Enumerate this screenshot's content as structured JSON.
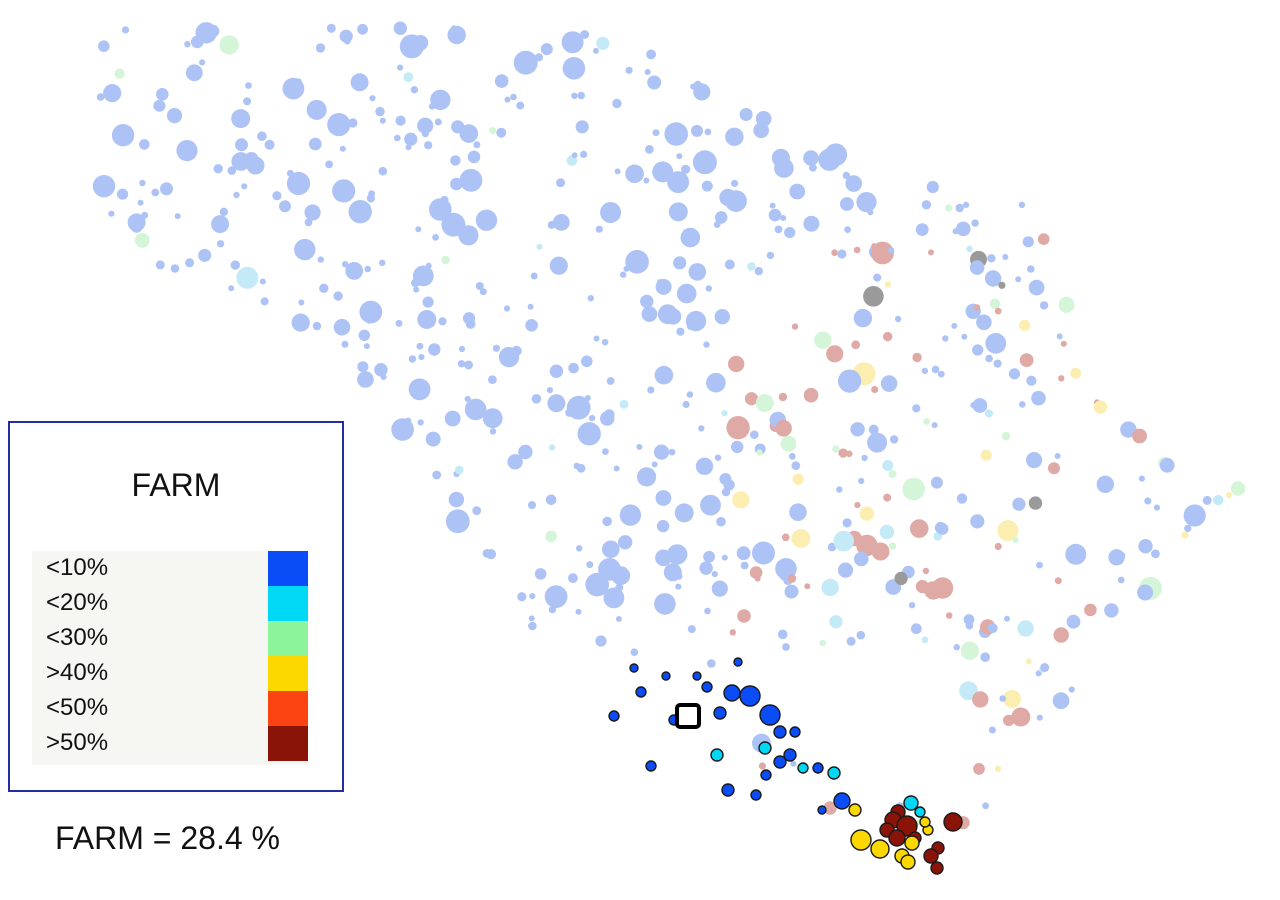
{
  "legend": {
    "title": "FARM",
    "classes": [
      {
        "label": "<10%",
        "color": "#0a4cf5"
      },
      {
        "label": "<20%",
        "color": "#00d8f5"
      },
      {
        "label": "<30%",
        "color": "#8cf59a"
      },
      {
        "label": ">40%",
        "color": "#fdd800"
      },
      {
        "label": "<50%",
        "color": "#fb4412"
      },
      {
        "label": ">50%",
        "color": "#8a1408"
      }
    ]
  },
  "summary": "FARM = 28.4 %",
  "colors": {
    "faded_low": "#aec3f5",
    "faded_mid": "#c4e9f7",
    "faded_green": "#d5f5d8",
    "faded_yellow": "#fbeeb0",
    "faded_brown": "#dfaaa6",
    "faded_gray": "#9a9a9a",
    "legend_border": "#1f2f9c",
    "marker": "#000000"
  },
  "icons": {
    "site_marker": "square-marker-icon"
  }
}
